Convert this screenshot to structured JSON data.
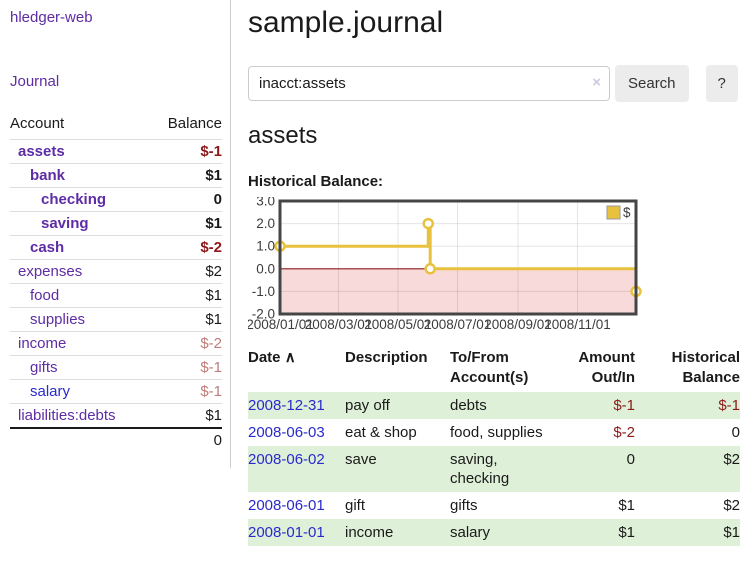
{
  "colors": {
    "link_purple": "#5e2ca5",
    "link_blue": "#2a2acc",
    "neg_strong": "#8e1919",
    "neg_faded": "#c07b7b",
    "row_green": "#dff0d8",
    "chart_line_gold": "#e8c23f",
    "chart_negative_bg": "#f9dada",
    "chart_zero_line": "#8b1a1a"
  },
  "app": {
    "brand": "hledger-web",
    "nav_journal": "Journal"
  },
  "sidebar": {
    "header": {
      "account": "Account",
      "balance": "Balance"
    },
    "accounts": [
      {
        "name": "assets",
        "level": 0,
        "balance": "$-1",
        "bold": true,
        "neg": "strong"
      },
      {
        "name": "bank",
        "level": 1,
        "balance": "$1",
        "bold": true
      },
      {
        "name": "checking",
        "level": 2,
        "balance": "0",
        "bold": true
      },
      {
        "name": "saving",
        "level": 2,
        "balance": "$1",
        "bold": true
      },
      {
        "name": "cash",
        "level": 1,
        "balance": "$-2",
        "bold": true,
        "neg": "strong"
      },
      {
        "name": "expenses",
        "level": 0,
        "balance": "$2"
      },
      {
        "name": "food",
        "level": 1,
        "balance": "$1"
      },
      {
        "name": "supplies",
        "level": 1,
        "balance": "$1"
      },
      {
        "name": "income",
        "level": 0,
        "balance": "$-2",
        "neg": "faded"
      },
      {
        "name": "gifts",
        "level": 1,
        "balance": "$-1",
        "neg": "faded"
      },
      {
        "name": "salary",
        "level": 1,
        "balance": "$-1",
        "neg": "faded",
        "link_color": "blue"
      },
      {
        "name": "liabilities:debts",
        "level": 0,
        "balance": "$1"
      }
    ],
    "total": "0"
  },
  "header": {
    "title": "sample.journal"
  },
  "search": {
    "value": "inacct:assets",
    "clear_icon": "×",
    "button_label": "Search",
    "help_label": "?"
  },
  "account_page": {
    "title": "assets",
    "chart_label": "Historical Balance:"
  },
  "chart_data": {
    "type": "line",
    "title": "Historical Balance",
    "x_ticks": [
      "2008/01/01",
      "2008/03/01",
      "2008/05/01",
      "2008/07/01",
      "2008/09/01",
      "2008/11/01"
    ],
    "y_ticks": [
      "3.0",
      "2.0",
      "1.0",
      "0.0",
      "-1.0",
      "-2.0"
    ],
    "ylim": [
      -2,
      3
    ],
    "xlim": [
      "2008-01-01",
      "2008-12-31"
    ],
    "grid": true,
    "legend": {
      "label": "$",
      "position": "top-right"
    },
    "series": [
      {
        "name": "$",
        "style": "step",
        "color": "#e8c23f",
        "points": [
          {
            "date": "2008-01-01",
            "value": 1
          },
          {
            "date": "2008-06-01",
            "value": 2
          },
          {
            "date": "2008-06-03",
            "value": 0
          },
          {
            "date": "2008-12-31",
            "value": -1
          }
        ]
      }
    ]
  },
  "register": {
    "columns": [
      "Date",
      "Description",
      "To/From Account(s)",
      "Amount Out/In",
      "Historical Balance"
    ],
    "sort_icon": "∧",
    "rows": [
      {
        "date": "2008-12-31",
        "description": "pay off",
        "accounts": "debts",
        "amount": "$-1",
        "balance": "$-1"
      },
      {
        "date": "2008-06-03",
        "description": "eat & shop",
        "accounts": "food, supplies",
        "amount": "$-2",
        "balance": "0"
      },
      {
        "date": "2008-06-02",
        "description": "save",
        "accounts": "saving, checking",
        "amount": "0",
        "balance": "$2"
      },
      {
        "date": "2008-06-01",
        "description": "gift",
        "accounts": "gifts",
        "amount": "$1",
        "balance": "$2"
      },
      {
        "date": "2008-01-01",
        "description": "income",
        "accounts": "salary",
        "amount": "$1",
        "balance": "$1"
      }
    ]
  }
}
